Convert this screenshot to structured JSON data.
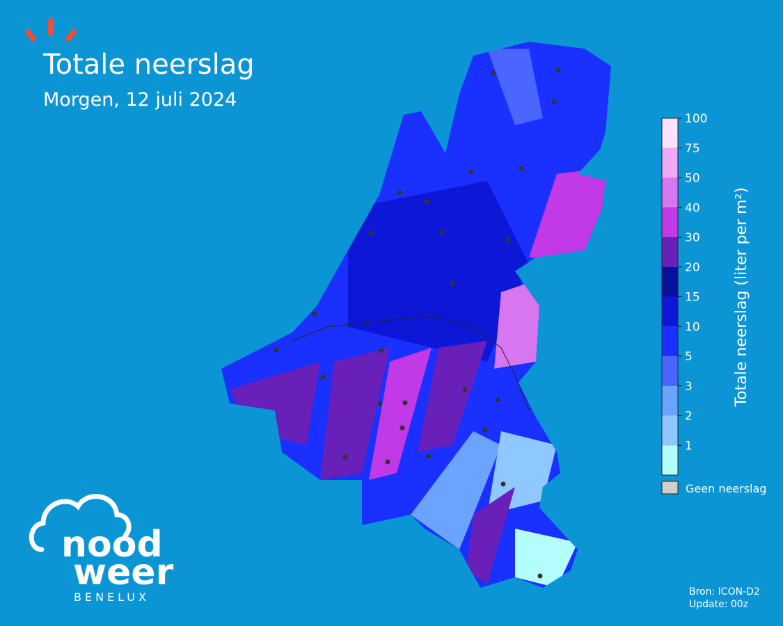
{
  "header": {
    "title": "Totale neerslag",
    "subtitle": "Morgen, 12 juli 2024"
  },
  "colorbar": {
    "label": "Totale neerslag (liter per m²)",
    "ticks": [
      1,
      2,
      3,
      5,
      10,
      15,
      20,
      30,
      40,
      50,
      75,
      100
    ],
    "colors": [
      "#b4fdfd",
      "#8fc8ff",
      "#6aa4ff",
      "#4a66ff",
      "#1a30ff",
      "#0c18d6",
      "#07109c",
      "#6820b8",
      "#c23ae8",
      "#d876ef",
      "#efa8f4",
      "#fbe1fb"
    ],
    "none_label": "Geen neerslag",
    "none_color": "#cfcfcf"
  },
  "footer": {
    "source": "Bron: ICON-D2",
    "update": "Update: 00z"
  },
  "logo": {
    "line1": "nood",
    "line2": "weer",
    "line3": "BENELUX"
  }
}
